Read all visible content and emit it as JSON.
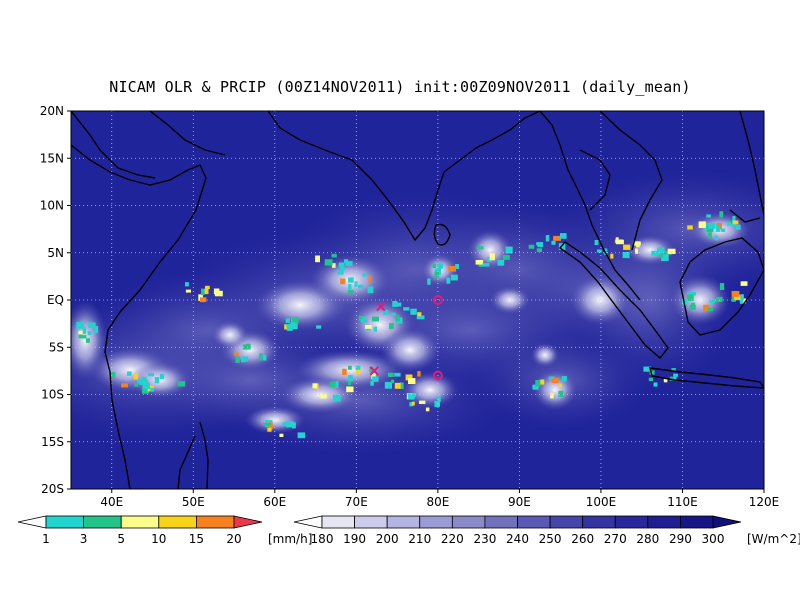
{
  "title": "NICAM OLR & PRCIP (00Z14NOV2011) init:00Z09NOV2011 (daily_mean)",
  "map": {
    "lon_range": [
      35,
      120
    ],
    "lat_range": [
      -20,
      20
    ],
    "lon_ticks": [
      "40E",
      "50E",
      "60E",
      "70E",
      "80E",
      "90E",
      "100E",
      "110E",
      "120E"
    ],
    "lat_ticks": [
      "20N",
      "15N",
      "10N",
      "5N",
      "EQ",
      "5S",
      "10S",
      "15S",
      "20S"
    ],
    "grid": "dotted",
    "ocean_color": "#20249a",
    "coastline_color": "#000000"
  },
  "markers": [
    {
      "symbol": "x",
      "lon": 73,
      "lat": -0.7,
      "color": "#e8187a"
    },
    {
      "symbol": "x",
      "lon": 72.2,
      "lat": -7.5,
      "color": "#e8187a"
    },
    {
      "symbol": "o",
      "lon": 80,
      "lat": 0,
      "color": "#e8187a"
    },
    {
      "symbol": "o",
      "lon": 80,
      "lat": -8,
      "color": "#e8187a"
    }
  ],
  "colorbar_precip": {
    "unit": "[mm/h]",
    "labels": [
      "1",
      "3",
      "5",
      "10",
      "15",
      "20"
    ],
    "colors": [
      "#ffffff",
      "#22d3cf",
      "#23c48a",
      "#fcfc8c",
      "#f7d31a",
      "#f5821f",
      "#e8384a"
    ]
  },
  "colorbar_olr": {
    "unit": "[W/m^2]",
    "labels": [
      "180",
      "190",
      "200",
      "210",
      "220",
      "230",
      "240",
      "250",
      "260",
      "270",
      "280",
      "290",
      "300"
    ],
    "colors": [
      "#ffffff",
      "#e6e6f2",
      "#ccccea",
      "#b4b4e0",
      "#9c9cd4",
      "#8a8ac8",
      "#7272bc",
      "#5a5ab4",
      "#4646aa",
      "#3434a2",
      "#28289a",
      "#1e1e90",
      "#161686",
      "#10107a"
    ]
  }
}
